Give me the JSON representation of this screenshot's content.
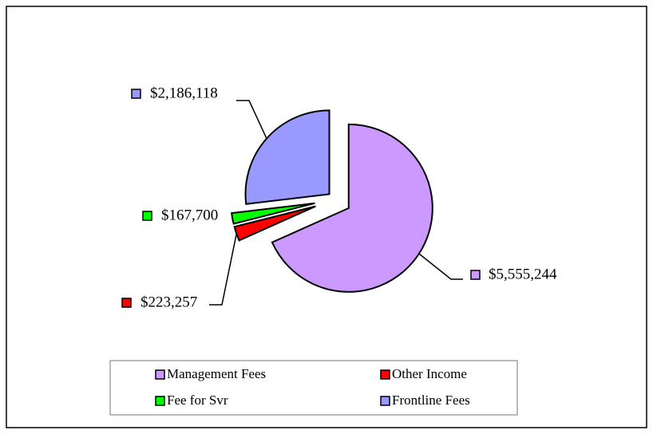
{
  "chart_data": {
    "type": "pie",
    "categories": [
      "Management Fees",
      "Other Income",
      "Fee for Svr",
      "Frontline Fees"
    ],
    "values": [
      5555244,
      223257,
      167700,
      2186118
    ],
    "value_labels": [
      "$5,555,244",
      "$223,257",
      "$167,700",
      "$2,186,118"
    ],
    "colors": [
      "#cc99ff",
      "#ff0000",
      "#00ff00",
      "#9999ff"
    ],
    "legend": "bottom"
  }
}
